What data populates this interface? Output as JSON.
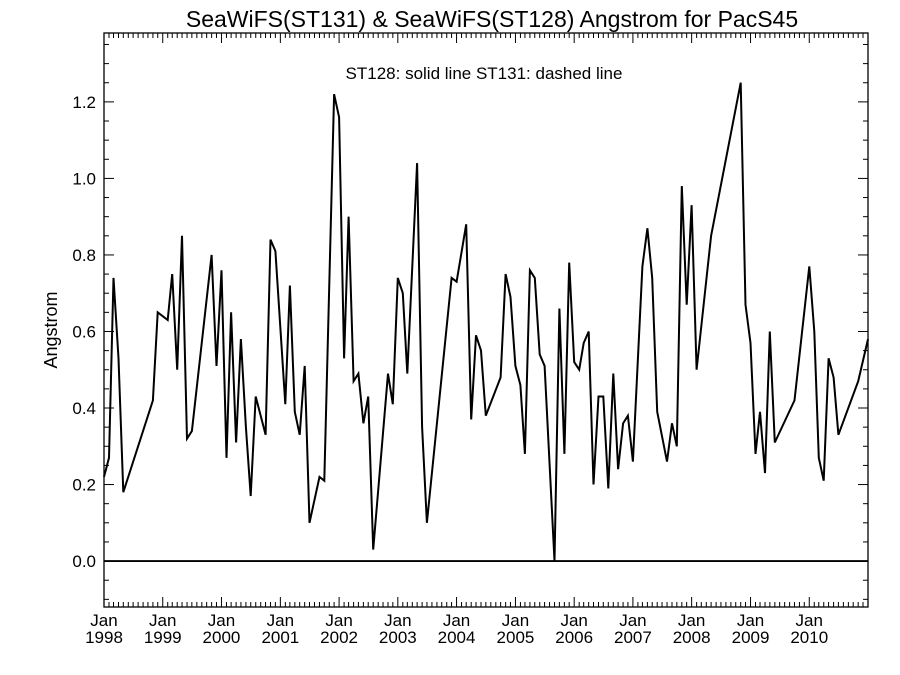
{
  "chart_data": {
    "type": "line",
    "title": "SeaWiFS(ST131) & SeaWiFS(ST128)  Angstrom for PacS45",
    "annotation": "ST128: solid line   ST131: dashed line",
    "ylabel": "Angstrom",
    "xlabel": "",
    "xlim": [
      "1998-01-01",
      "2011-01-01"
    ],
    "ylim": [
      -0.12,
      1.38
    ],
    "yticks": [
      0.0,
      0.2,
      0.4,
      0.6,
      0.8,
      1.0,
      1.2
    ],
    "ytick_labels": [
      "0.0",
      "0.2",
      "0.4",
      "0.6",
      "0.8",
      "1.0",
      "1.2"
    ],
    "xticks": [
      {
        "date": "1998-01-01",
        "month": "Jan",
        "year": "1998"
      },
      {
        "date": "1999-01-01",
        "month": "Jan",
        "year": "1999"
      },
      {
        "date": "2000-01-01",
        "month": "Jan",
        "year": "2000"
      },
      {
        "date": "2001-01-01",
        "month": "Jan",
        "year": "2001"
      },
      {
        "date": "2002-01-01",
        "month": "Jan",
        "year": "2002"
      },
      {
        "date": "2003-01-01",
        "month": "Jan",
        "year": "2003"
      },
      {
        "date": "2004-01-01",
        "month": "Jan",
        "year": "2004"
      },
      {
        "date": "2005-01-01",
        "month": "Jan",
        "year": "2005"
      },
      {
        "date": "2006-01-01",
        "month": "Jan",
        "year": "2006"
      },
      {
        "date": "2007-01-01",
        "month": "Jan",
        "year": "2007"
      },
      {
        "date": "2008-01-01",
        "month": "Jan",
        "year": "2008"
      },
      {
        "date": "2009-01-01",
        "month": "Jan",
        "year": "2009"
      },
      {
        "date": "2010-01-01",
        "month": "Jan",
        "year": "2010"
      }
    ],
    "reference_line": 0.0,
    "grid": false,
    "series": [
      {
        "name": "ST128",
        "style": "solid",
        "color": "#000000",
        "points": [
          [
            "1998-01-01",
            0.22
          ],
          [
            "1998-02-01",
            0.27
          ],
          [
            "1998-03-01",
            0.74
          ],
          [
            "1998-04-01",
            0.53
          ],
          [
            "1998-05-01",
            0.18
          ],
          [
            "1998-11-01",
            0.42
          ],
          [
            "1998-12-01",
            0.65
          ],
          [
            "1999-02-01",
            0.63
          ],
          [
            "1999-03-01",
            0.75
          ],
          [
            "1999-04-01",
            0.5
          ],
          [
            "1999-05-01",
            0.85
          ],
          [
            "1999-06-01",
            0.32
          ],
          [
            "1999-07-01",
            0.34
          ],
          [
            "1999-11-01",
            0.8
          ],
          [
            "1999-12-01",
            0.51
          ],
          [
            "2000-01-01",
            0.76
          ],
          [
            "2000-02-01",
            0.27
          ],
          [
            "2000-03-01",
            0.65
          ],
          [
            "2000-04-01",
            0.31
          ],
          [
            "2000-05-01",
            0.58
          ],
          [
            "2000-06-01",
            0.35
          ],
          [
            "2000-07-01",
            0.17
          ],
          [
            "2000-08-01",
            0.43
          ],
          [
            "2000-10-01",
            0.33
          ],
          [
            "2000-11-01",
            0.84
          ],
          [
            "2000-12-01",
            0.81
          ],
          [
            "2001-02-01",
            0.41
          ],
          [
            "2001-03-01",
            0.72
          ],
          [
            "2001-04-01",
            0.39
          ],
          [
            "2001-05-01",
            0.33
          ],
          [
            "2001-06-01",
            0.51
          ],
          [
            "2001-07-01",
            0.1
          ],
          [
            "2001-09-01",
            0.22
          ],
          [
            "2001-10-01",
            0.21
          ],
          [
            "2001-12-01",
            1.22
          ],
          [
            "2002-01-01",
            1.16
          ],
          [
            "2002-02-01",
            0.53
          ],
          [
            "2002-03-01",
            0.9
          ],
          [
            "2002-04-01",
            0.47
          ],
          [
            "2002-05-01",
            0.49
          ],
          [
            "2002-06-01",
            0.36
          ],
          [
            "2002-07-01",
            0.43
          ],
          [
            "2002-08-01",
            0.03
          ],
          [
            "2002-11-01",
            0.49
          ],
          [
            "2002-12-01",
            0.41
          ],
          [
            "2003-01-01",
            0.74
          ],
          [
            "2003-02-01",
            0.7
          ],
          [
            "2003-03-01",
            0.49
          ],
          [
            "2003-05-01",
            1.04
          ],
          [
            "2003-06-01",
            0.35
          ],
          [
            "2003-07-01",
            0.1
          ],
          [
            "2003-12-01",
            0.74
          ],
          [
            "2004-01-01",
            0.73
          ],
          [
            "2004-03-01",
            0.88
          ],
          [
            "2004-04-01",
            0.37
          ],
          [
            "2004-05-01",
            0.59
          ],
          [
            "2004-06-01",
            0.55
          ],
          [
            "2004-07-01",
            0.38
          ],
          [
            "2004-10-01",
            0.48
          ],
          [
            "2004-11-01",
            0.75
          ],
          [
            "2004-12-01",
            0.69
          ],
          [
            "2005-01-01",
            0.51
          ],
          [
            "2005-02-01",
            0.46
          ],
          [
            "2005-03-01",
            0.28
          ],
          [
            "2005-04-01",
            0.76
          ],
          [
            "2005-05-01",
            0.74
          ],
          [
            "2005-06-01",
            0.54
          ],
          [
            "2005-07-01",
            0.51
          ],
          [
            "2005-09-01",
            0.0
          ],
          [
            "2005-10-01",
            0.66
          ],
          [
            "2005-11-01",
            0.28
          ],
          [
            "2005-12-01",
            0.78
          ],
          [
            "2006-01-01",
            0.52
          ],
          [
            "2006-02-01",
            0.5
          ],
          [
            "2006-03-01",
            0.57
          ],
          [
            "2006-04-01",
            0.6
          ],
          [
            "2006-05-01",
            0.2
          ],
          [
            "2006-06-01",
            0.43
          ],
          [
            "2006-07-01",
            0.43
          ],
          [
            "2006-08-01",
            0.19
          ],
          [
            "2006-09-01",
            0.49
          ],
          [
            "2006-10-01",
            0.24
          ],
          [
            "2006-11-01",
            0.36
          ],
          [
            "2006-12-01",
            0.38
          ],
          [
            "2007-01-01",
            0.26
          ],
          [
            "2007-03-01",
            0.77
          ],
          [
            "2007-04-01",
            0.87
          ],
          [
            "2007-05-01",
            0.74
          ],
          [
            "2007-06-01",
            0.39
          ],
          [
            "2007-08-01",
            0.26
          ],
          [
            "2007-09-01",
            0.36
          ],
          [
            "2007-10-01",
            0.3
          ],
          [
            "2007-11-01",
            0.98
          ],
          [
            "2007-12-01",
            0.67
          ],
          [
            "2008-01-01",
            0.93
          ],
          [
            "2008-02-01",
            0.5
          ],
          [
            "2008-05-01",
            0.85
          ],
          [
            "2008-11-01",
            1.25
          ],
          [
            "2008-12-01",
            0.67
          ],
          [
            "2009-01-01",
            0.57
          ],
          [
            "2009-02-01",
            0.28
          ],
          [
            "2009-03-01",
            0.39
          ],
          [
            "2009-04-01",
            0.23
          ],
          [
            "2009-05-01",
            0.6
          ],
          [
            "2009-06-01",
            0.31
          ],
          [
            "2009-10-01",
            0.42
          ],
          [
            "2010-01-01",
            0.77
          ],
          [
            "2010-02-01",
            0.6
          ],
          [
            "2010-03-01",
            0.27
          ],
          [
            "2010-04-01",
            0.21
          ],
          [
            "2010-05-01",
            0.53
          ],
          [
            "2010-06-01",
            0.48
          ],
          [
            "2010-07-01",
            0.33
          ],
          [
            "2010-11-01",
            0.47
          ],
          [
            "2011-01-01",
            0.58
          ]
        ]
      }
    ]
  }
}
